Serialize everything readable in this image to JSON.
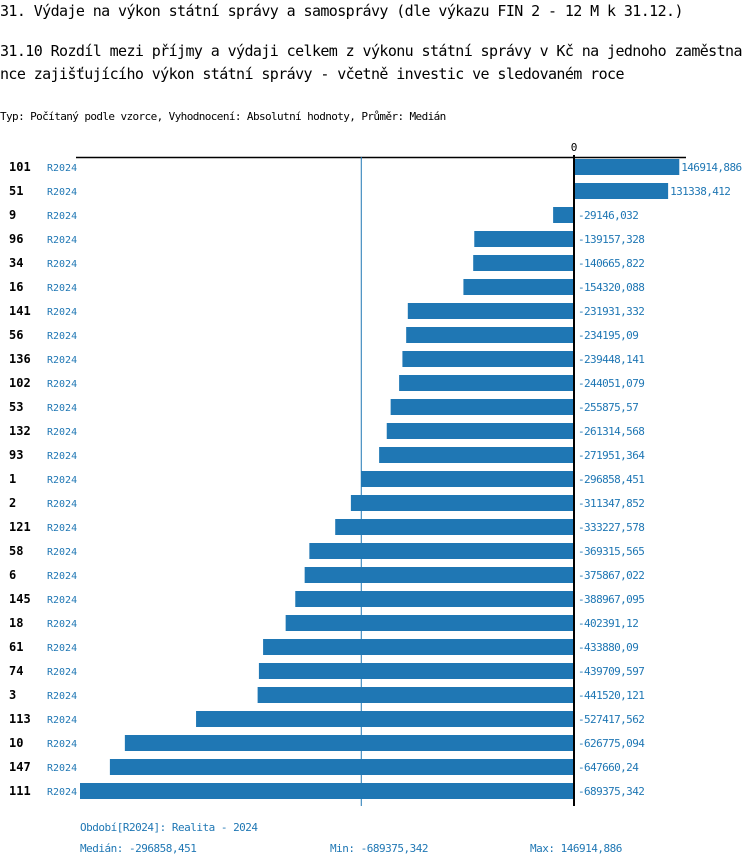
{
  "header": {
    "title": "31. Výdaje na výkon státní správy a samosprávy (dle výkazu FIN 2 - 12 M k 31.12.)",
    "subtitle": "31.10 Rozdíl mezi  příjmy a výdaji celkem z výkonu státní správy v Kč na jednoho zaměstnance zajišťujícího výkon státní správy - včetně investic ve sledovaném roce",
    "meta": "Typ: Počítaný podle vzorce, Vyhodnocení: Absolutní hodnoty, Průměr: Medián"
  },
  "colors": {
    "bar": "#1f77b4",
    "text_accent": "#1f77b4",
    "axis": "#000000"
  },
  "chart_data": {
    "type": "bar",
    "orientation": "horizontal",
    "zero_label": "0",
    "period_label": "R2024",
    "median": -296858.451,
    "rows": [
      {
        "id": "101",
        "period": "R2024",
        "value": 146914.886,
        "label": "146914,886"
      },
      {
        "id": "51",
        "period": "R2024",
        "value": 131338.412,
        "label": "131338,412"
      },
      {
        "id": "9",
        "period": "R2024",
        "value": -29146.032,
        "label": "-29146,032"
      },
      {
        "id": "96",
        "period": "R2024",
        "value": -139157.328,
        "label": "-139157,328"
      },
      {
        "id": "34",
        "period": "R2024",
        "value": -140665.822,
        "label": "-140665,822"
      },
      {
        "id": "16",
        "period": "R2024",
        "value": -154320.088,
        "label": "-154320,088"
      },
      {
        "id": "141",
        "period": "R2024",
        "value": -231931.332,
        "label": "-231931,332"
      },
      {
        "id": "56",
        "period": "R2024",
        "value": -234195.09,
        "label": "-234195,09"
      },
      {
        "id": "136",
        "period": "R2024",
        "value": -239448.141,
        "label": "-239448,141"
      },
      {
        "id": "102",
        "period": "R2024",
        "value": -244051.079,
        "label": "-244051,079"
      },
      {
        "id": "53",
        "period": "R2024",
        "value": -255875.57,
        "label": "-255875,57"
      },
      {
        "id": "132",
        "period": "R2024",
        "value": -261314.568,
        "label": "-261314,568"
      },
      {
        "id": "93",
        "period": "R2024",
        "value": -271951.364,
        "label": "-271951,364"
      },
      {
        "id": "1",
        "period": "R2024",
        "value": -296858.451,
        "label": "-296858,451"
      },
      {
        "id": "2",
        "period": "R2024",
        "value": -311347.852,
        "label": "-311347,852"
      },
      {
        "id": "121",
        "period": "R2024",
        "value": -333227.578,
        "label": "-333227,578"
      },
      {
        "id": "58",
        "period": "R2024",
        "value": -369315.565,
        "label": "-369315,565"
      },
      {
        "id": "6",
        "period": "R2024",
        "value": -375867.022,
        "label": "-375867,022"
      },
      {
        "id": "145",
        "period": "R2024",
        "value": -388967.095,
        "label": "-388967,095"
      },
      {
        "id": "18",
        "period": "R2024",
        "value": -402391.12,
        "label": "-402391,12"
      },
      {
        "id": "61",
        "period": "R2024",
        "value": -433880.09,
        "label": "-433880,09"
      },
      {
        "id": "74",
        "period": "R2024",
        "value": -439709.597,
        "label": "-439709,597"
      },
      {
        "id": "3",
        "period": "R2024",
        "value": -441520.121,
        "label": "-441520,121"
      },
      {
        "id": "113",
        "period": "R2024",
        "value": -527417.562,
        "label": "-527417,562"
      },
      {
        "id": "10",
        "period": "R2024",
        "value": -626775.094,
        "label": "-626775,094"
      },
      {
        "id": "147",
        "period": "R2024",
        "value": -647660.24,
        "label": "-647660,24"
      },
      {
        "id": "111",
        "period": "R2024",
        "value": -689375.342,
        "label": "-689375,342"
      }
    ],
    "xlim": [
      -689375.342,
      146914.886
    ]
  },
  "footer": {
    "period_note": "Období[R2024]: Realita - 2024",
    "median": "Medián: -296858,451",
    "min": "Min: -689375,342",
    "max": "Max: 146914,886"
  }
}
